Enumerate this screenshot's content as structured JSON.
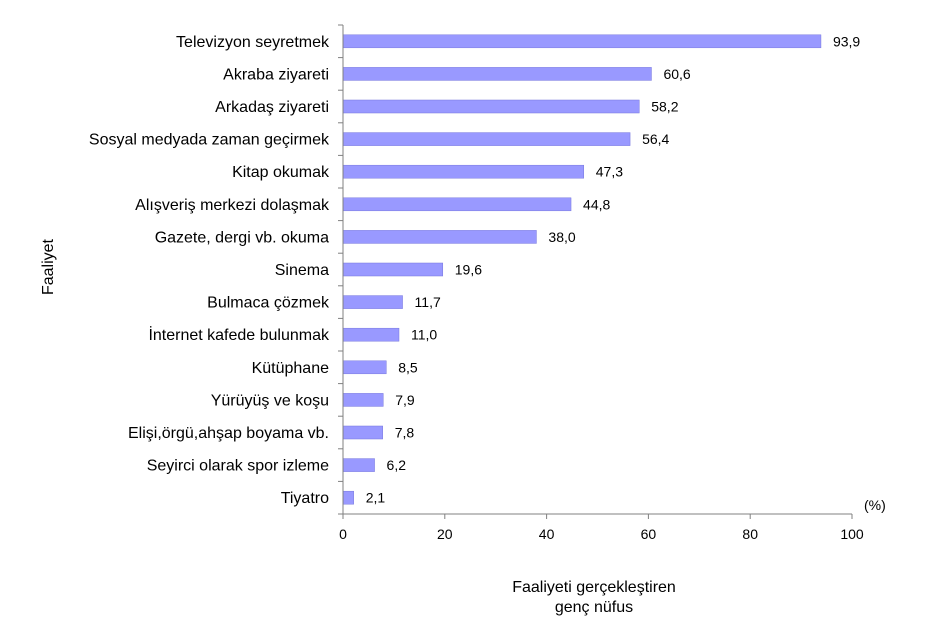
{
  "chart_data": {
    "type": "bar",
    "orientation": "horizontal",
    "categories": [
      "Televizyon seyretmek",
      "Akraba ziyareti",
      "Arkadaş ziyareti",
      "Sosyal medyada zaman geçirmek",
      "Kitap okumak",
      "Alışveriş merkezi dolaşmak",
      "Gazete, dergi vb. okuma",
      "Sinema",
      "Bulmaca çözmek",
      "İnternet kafede bulunmak",
      "Kütüphane",
      "Yürüyüş ve koşu",
      "Elişi,örgü,ahşap boyama vb.",
      "Seyirci olarak spor izleme",
      "Tiyatro"
    ],
    "values": [
      93.9,
      60.6,
      58.2,
      56.4,
      47.3,
      44.8,
      38.0,
      19.6,
      11.7,
      11.0,
      8.5,
      7.9,
      7.8,
      6.2,
      2.1
    ],
    "value_labels": [
      "93,9",
      "60,6",
      "58,2",
      "56,4",
      "47,3",
      "44,8",
      "38,0",
      "19,6",
      "11,7",
      "11,0",
      "8,5",
      "7,9",
      "7,8",
      "6,2",
      "2,1"
    ],
    "xlim": [
      0,
      100
    ],
    "xticks": [
      0,
      20,
      40,
      60,
      80,
      100
    ],
    "ylabel": "Faaliyet",
    "xlabel_line1": "Faaliyeti gerçekleştiren",
    "xlabel_line2": "genç nüfus",
    "unit_label": "(%)",
    "bar_color": "#9999ff",
    "bar_border_color": "#7777dd",
    "axis_color": "#808080",
    "grid": false
  }
}
